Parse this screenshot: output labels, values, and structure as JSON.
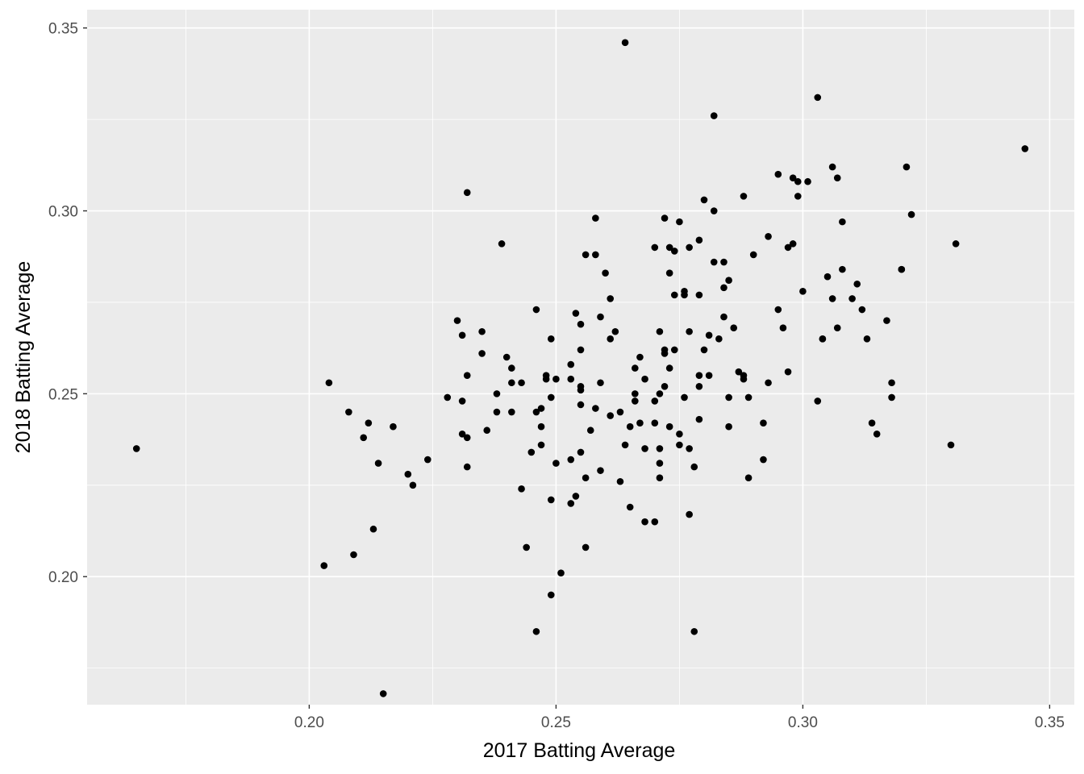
{
  "chart_data": {
    "type": "scatter",
    "title": "",
    "xlabel": "2017 Batting Average",
    "ylabel": "2018 Batting Average",
    "xlim": [
      0.155,
      0.355
    ],
    "ylim": [
      0.165,
      0.355
    ],
    "x_ticks": [
      0.2,
      0.25,
      0.3,
      0.35
    ],
    "x_tick_labels": [
      "0.20",
      "0.25",
      "0.30",
      "0.35"
    ],
    "y_ticks": [
      0.2,
      0.25,
      0.3,
      0.35
    ],
    "y_tick_labels": [
      "0.20",
      "0.25",
      "0.30",
      "0.35"
    ],
    "grid": true,
    "legend": "none",
    "colors": {
      "panel": "#ebebeb",
      "grid": "#ffffff",
      "point": "#000000"
    },
    "points": [
      [
        0.165,
        0.235
      ],
      [
        0.203,
        0.203
      ],
      [
        0.204,
        0.253
      ],
      [
        0.208,
        0.245
      ],
      [
        0.209,
        0.206
      ],
      [
        0.211,
        0.238
      ],
      [
        0.212,
        0.242
      ],
      [
        0.213,
        0.213
      ],
      [
        0.214,
        0.231
      ],
      [
        0.215,
        0.168
      ],
      [
        0.217,
        0.241
      ],
      [
        0.22,
        0.228
      ],
      [
        0.221,
        0.225
      ],
      [
        0.224,
        0.232
      ],
      [
        0.228,
        0.249
      ],
      [
        0.23,
        0.27
      ],
      [
        0.231,
        0.248
      ],
      [
        0.231,
        0.239
      ],
      [
        0.231,
        0.266
      ],
      [
        0.232,
        0.23
      ],
      [
        0.232,
        0.238
      ],
      [
        0.232,
        0.255
      ],
      [
        0.232,
        0.305
      ],
      [
        0.235,
        0.267
      ],
      [
        0.235,
        0.261
      ],
      [
        0.236,
        0.24
      ],
      [
        0.238,
        0.245
      ],
      [
        0.238,
        0.25
      ],
      [
        0.239,
        0.291
      ],
      [
        0.24,
        0.26
      ],
      [
        0.241,
        0.257
      ],
      [
        0.241,
        0.253
      ],
      [
        0.241,
        0.245
      ],
      [
        0.243,
        0.224
      ],
      [
        0.243,
        0.253
      ],
      [
        0.244,
        0.208
      ],
      [
        0.245,
        0.234
      ],
      [
        0.246,
        0.273
      ],
      [
        0.246,
        0.245
      ],
      [
        0.246,
        0.185
      ],
      [
        0.247,
        0.241
      ],
      [
        0.247,
        0.246
      ],
      [
        0.247,
        0.236
      ],
      [
        0.248,
        0.254
      ],
      [
        0.248,
        0.255
      ],
      [
        0.249,
        0.265
      ],
      [
        0.249,
        0.195
      ],
      [
        0.249,
        0.221
      ],
      [
        0.249,
        0.249
      ],
      [
        0.25,
        0.231
      ],
      [
        0.25,
        0.254
      ],
      [
        0.251,
        0.201
      ],
      [
        0.253,
        0.258
      ],
      [
        0.253,
        0.254
      ],
      [
        0.253,
        0.232
      ],
      [
        0.253,
        0.22
      ],
      [
        0.254,
        0.272
      ],
      [
        0.254,
        0.222
      ],
      [
        0.255,
        0.234
      ],
      [
        0.255,
        0.247
      ],
      [
        0.255,
        0.251
      ],
      [
        0.255,
        0.262
      ],
      [
        0.255,
        0.269
      ],
      [
        0.255,
        0.252
      ],
      [
        0.256,
        0.208
      ],
      [
        0.256,
        0.227
      ],
      [
        0.256,
        0.288
      ],
      [
        0.257,
        0.24
      ],
      [
        0.258,
        0.246
      ],
      [
        0.258,
        0.298
      ],
      [
        0.258,
        0.288
      ],
      [
        0.259,
        0.253
      ],
      [
        0.259,
        0.229
      ],
      [
        0.259,
        0.271
      ],
      [
        0.26,
        0.283
      ],
      [
        0.261,
        0.244
      ],
      [
        0.261,
        0.265
      ],
      [
        0.261,
        0.276
      ],
      [
        0.262,
        0.267
      ],
      [
        0.263,
        0.245
      ],
      [
        0.263,
        0.226
      ],
      [
        0.264,
        0.236
      ],
      [
        0.264,
        0.346
      ],
      [
        0.265,
        0.241
      ],
      [
        0.265,
        0.219
      ],
      [
        0.266,
        0.248
      ],
      [
        0.266,
        0.257
      ],
      [
        0.266,
        0.25
      ],
      [
        0.267,
        0.242
      ],
      [
        0.267,
        0.26
      ],
      [
        0.268,
        0.235
      ],
      [
        0.268,
        0.254
      ],
      [
        0.268,
        0.215
      ],
      [
        0.27,
        0.242
      ],
      [
        0.27,
        0.248
      ],
      [
        0.27,
        0.215
      ],
      [
        0.27,
        0.29
      ],
      [
        0.271,
        0.267
      ],
      [
        0.271,
        0.235
      ],
      [
        0.271,
        0.227
      ],
      [
        0.271,
        0.231
      ],
      [
        0.271,
        0.25
      ],
      [
        0.272,
        0.261
      ],
      [
        0.272,
        0.252
      ],
      [
        0.272,
        0.262
      ],
      [
        0.272,
        0.298
      ],
      [
        0.273,
        0.283
      ],
      [
        0.273,
        0.257
      ],
      [
        0.273,
        0.29
      ],
      [
        0.273,
        0.241
      ],
      [
        0.274,
        0.289
      ],
      [
        0.274,
        0.262
      ],
      [
        0.274,
        0.277
      ],
      [
        0.275,
        0.239
      ],
      [
        0.275,
        0.236
      ],
      [
        0.275,
        0.297
      ],
      [
        0.276,
        0.278
      ],
      [
        0.276,
        0.277
      ],
      [
        0.276,
        0.249
      ],
      [
        0.277,
        0.217
      ],
      [
        0.277,
        0.29
      ],
      [
        0.277,
        0.235
      ],
      [
        0.277,
        0.267
      ],
      [
        0.278,
        0.23
      ],
      [
        0.278,
        0.185
      ],
      [
        0.279,
        0.277
      ],
      [
        0.279,
        0.292
      ],
      [
        0.279,
        0.252
      ],
      [
        0.279,
        0.255
      ],
      [
        0.279,
        0.243
      ],
      [
        0.28,
        0.262
      ],
      [
        0.28,
        0.303
      ],
      [
        0.281,
        0.255
      ],
      [
        0.281,
        0.266
      ],
      [
        0.282,
        0.286
      ],
      [
        0.282,
        0.3
      ],
      [
        0.282,
        0.326
      ],
      [
        0.283,
        0.265
      ],
      [
        0.284,
        0.271
      ],
      [
        0.284,
        0.279
      ],
      [
        0.284,
        0.286
      ],
      [
        0.285,
        0.281
      ],
      [
        0.285,
        0.241
      ],
      [
        0.285,
        0.249
      ],
      [
        0.286,
        0.268
      ],
      [
        0.287,
        0.256
      ],
      [
        0.288,
        0.254
      ],
      [
        0.288,
        0.255
      ],
      [
        0.288,
        0.304
      ],
      [
        0.289,
        0.249
      ],
      [
        0.289,
        0.227
      ],
      [
        0.29,
        0.288
      ],
      [
        0.292,
        0.242
      ],
      [
        0.292,
        0.232
      ],
      [
        0.293,
        0.293
      ],
      [
        0.293,
        0.253
      ],
      [
        0.295,
        0.31
      ],
      [
        0.295,
        0.273
      ],
      [
        0.296,
        0.268
      ],
      [
        0.297,
        0.256
      ],
      [
        0.297,
        0.29
      ],
      [
        0.298,
        0.291
      ],
      [
        0.298,
        0.309
      ],
      [
        0.299,
        0.308
      ],
      [
        0.299,
        0.304
      ],
      [
        0.3,
        0.278
      ],
      [
        0.301,
        0.308
      ],
      [
        0.303,
        0.248
      ],
      [
        0.303,
        0.331
      ],
      [
        0.304,
        0.265
      ],
      [
        0.304,
        0.265
      ],
      [
        0.305,
        0.282
      ],
      [
        0.306,
        0.312
      ],
      [
        0.306,
        0.276
      ],
      [
        0.307,
        0.309
      ],
      [
        0.307,
        0.268
      ],
      [
        0.308,
        0.297
      ],
      [
        0.308,
        0.284
      ],
      [
        0.31,
        0.276
      ],
      [
        0.311,
        0.28
      ],
      [
        0.312,
        0.273
      ],
      [
        0.313,
        0.265
      ],
      [
        0.314,
        0.242
      ],
      [
        0.315,
        0.239
      ],
      [
        0.317,
        0.27
      ],
      [
        0.318,
        0.253
      ],
      [
        0.318,
        0.249
      ],
      [
        0.32,
        0.284
      ],
      [
        0.32,
        0.284
      ],
      [
        0.321,
        0.312
      ],
      [
        0.322,
        0.299
      ],
      [
        0.33,
        0.236
      ],
      [
        0.331,
        0.291
      ],
      [
        0.345,
        0.317
      ]
    ]
  }
}
